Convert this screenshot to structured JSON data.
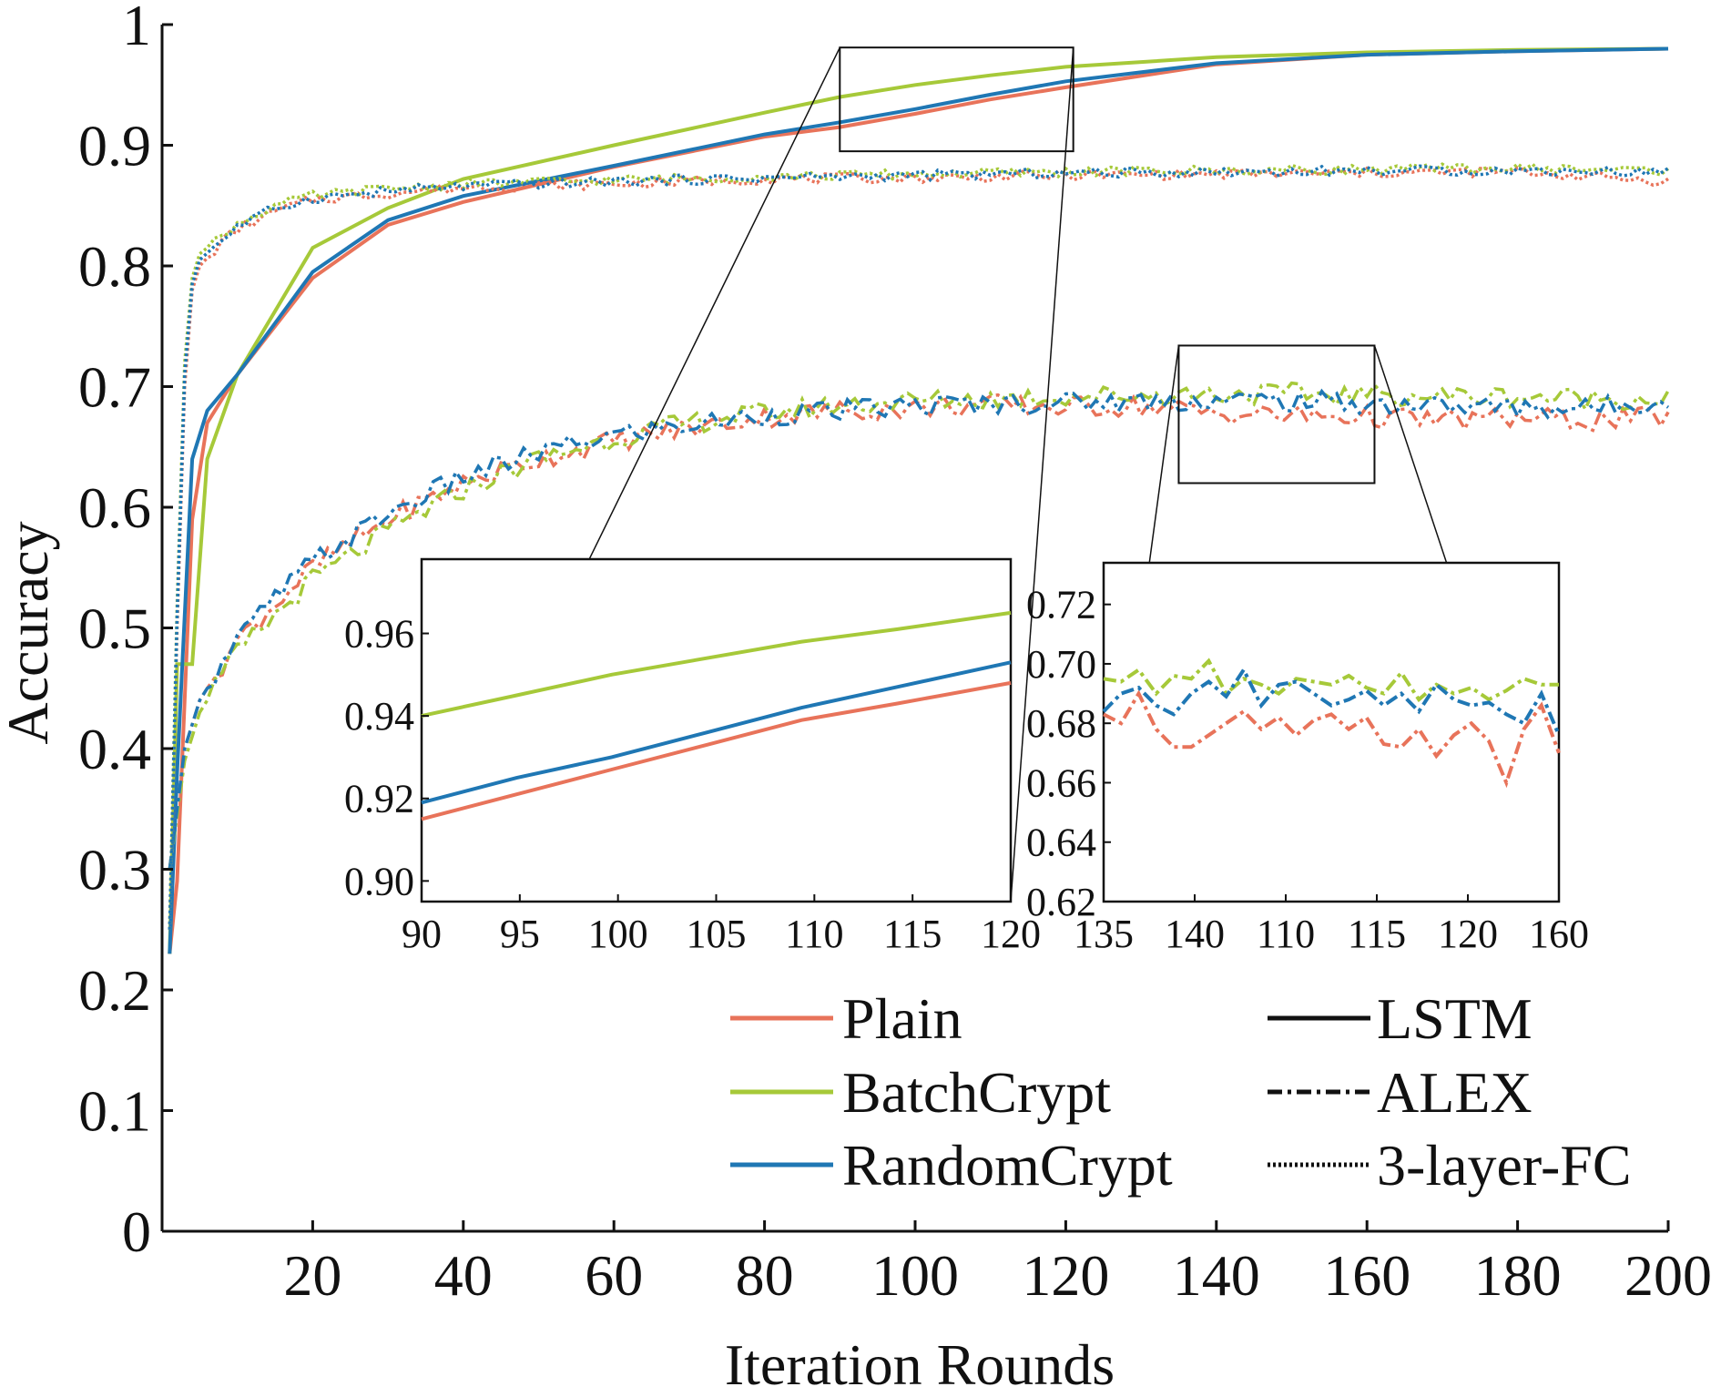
{
  "colors": {
    "Plain": "#e8735a",
    "BatchCrypt": "#a6c939",
    "RandomCrypt": "#1f77b4",
    "axis": "#111111"
  },
  "chart_data": [
    {
      "id": "main",
      "type": "line",
      "xlabel": "Iteration Rounds",
      "ylabel": "Accuracy",
      "xlim": [
        0,
        200
      ],
      "ylim": [
        0,
        1
      ],
      "xticks": [
        "20",
        "40",
        "60",
        "80",
        "100",
        "120",
        "140",
        "160",
        "180",
        "200"
      ],
      "yticks": [
        "0",
        "0.1",
        "0.2",
        "0.3",
        "0.4",
        "0.5",
        "0.6",
        "0.7",
        "0.8",
        "0.9",
        "1"
      ],
      "grid": false,
      "legend": {
        "placement": "bottom-right",
        "methods": [
          "Plain",
          "BatchCrypt",
          "RandomCrypt"
        ],
        "models": [
          "LSTM",
          "ALEX",
          "3-layer-FC"
        ]
      },
      "series": [
        {
          "name": "Plain",
          "model": "LSTM",
          "style": "solid",
          "x": [
            1,
            2,
            4,
            6,
            10,
            20,
            30,
            40,
            60,
            80,
            90,
            100,
            110,
            120,
            140,
            160,
            180,
            200
          ],
          "y": [
            0.23,
            0.29,
            0.59,
            0.67,
            0.71,
            0.79,
            0.834,
            0.853,
            0.882,
            0.907,
            0.915,
            0.926,
            0.938,
            0.948,
            0.967,
            0.975,
            0.978,
            0.98
          ]
        },
        {
          "name": "BatchCrypt",
          "model": "LSTM",
          "style": "solid",
          "x": [
            1,
            2,
            4,
            6,
            10,
            20,
            30,
            40,
            60,
            80,
            90,
            100,
            110,
            120,
            140,
            160,
            180,
            200
          ],
          "y": [
            0.23,
            0.47,
            0.47,
            0.64,
            0.71,
            0.815,
            0.848,
            0.872,
            0.9,
            0.927,
            0.94,
            0.95,
            0.958,
            0.965,
            0.973,
            0.977,
            0.979,
            0.98
          ]
        },
        {
          "name": "RandomCrypt",
          "model": "LSTM",
          "style": "solid",
          "x": [
            1,
            2,
            4,
            6,
            10,
            20,
            30,
            40,
            60,
            80,
            90,
            100,
            110,
            120,
            140,
            160,
            180,
            200
          ],
          "y": [
            0.23,
            0.38,
            0.64,
            0.68,
            0.71,
            0.795,
            0.838,
            0.858,
            0.883,
            0.909,
            0.919,
            0.93,
            0.942,
            0.953,
            0.968,
            0.975,
            0.978,
            0.98
          ]
        },
        {
          "name": "Plain",
          "model": "ALEX",
          "style": "dashed",
          "x": [
            1,
            3,
            5,
            8,
            10,
            15,
            20,
            25,
            30,
            40,
            50,
            60,
            70,
            80,
            90,
            100,
            110,
            120,
            130,
            140,
            150,
            160,
            170,
            180,
            190,
            200
          ],
          "y": [
            0.3,
            0.4,
            0.44,
            0.47,
            0.49,
            0.52,
            0.55,
            0.57,
            0.59,
            0.62,
            0.64,
            0.655,
            0.665,
            0.675,
            0.68,
            0.682,
            0.685,
            0.683,
            0.684,
            0.678,
            0.676,
            0.675,
            0.672,
            0.674,
            0.672,
            0.675
          ]
        },
        {
          "name": "BatchCrypt",
          "model": "ALEX",
          "style": "dashed",
          "x": [
            1,
            3,
            5,
            8,
            10,
            15,
            20,
            25,
            30,
            40,
            50,
            60,
            70,
            80,
            90,
            100,
            110,
            120,
            130,
            140,
            150,
            160,
            170,
            180,
            190,
            200
          ],
          "y": [
            0.3,
            0.39,
            0.43,
            0.46,
            0.48,
            0.51,
            0.54,
            0.56,
            0.58,
            0.615,
            0.64,
            0.657,
            0.67,
            0.678,
            0.685,
            0.688,
            0.69,
            0.692,
            0.693,
            0.694,
            0.694,
            0.693,
            0.692,
            0.692,
            0.69,
            0.69
          ]
        },
        {
          "name": "RandomCrypt",
          "model": "ALEX",
          "style": "dashed",
          "x": [
            1,
            3,
            5,
            8,
            10,
            15,
            20,
            25,
            30,
            40,
            50,
            60,
            70,
            80,
            90,
            100,
            110,
            120,
            130,
            140,
            150,
            160,
            170,
            180,
            190,
            200
          ],
          "y": [
            0.3,
            0.4,
            0.44,
            0.47,
            0.49,
            0.525,
            0.555,
            0.575,
            0.595,
            0.625,
            0.645,
            0.66,
            0.668,
            0.676,
            0.68,
            0.684,
            0.686,
            0.687,
            0.688,
            0.689,
            0.688,
            0.686,
            0.684,
            0.683,
            0.682,
            0.69
          ]
        },
        {
          "name": "Plain",
          "model": "3-layer-FC",
          "style": "dotted",
          "x": [
            1,
            2,
            3,
            4,
            5,
            8,
            10,
            15,
            20,
            30,
            40,
            60,
            80,
            100,
            120,
            140,
            160,
            180,
            200
          ],
          "y": [
            0.25,
            0.5,
            0.7,
            0.78,
            0.8,
            0.82,
            0.83,
            0.845,
            0.855,
            0.86,
            0.865,
            0.868,
            0.872,
            0.873,
            0.875,
            0.876,
            0.877,
            0.878,
            0.87
          ]
        },
        {
          "name": "BatchCrypt",
          "model": "3-layer-FC",
          "style": "dotted",
          "x": [
            1,
            2,
            3,
            4,
            5,
            8,
            10,
            15,
            20,
            30,
            40,
            60,
            80,
            100,
            120,
            140,
            160,
            180,
            200
          ],
          "y": [
            0.25,
            0.52,
            0.72,
            0.79,
            0.81,
            0.825,
            0.835,
            0.85,
            0.858,
            0.864,
            0.868,
            0.871,
            0.874,
            0.876,
            0.878,
            0.879,
            0.88,
            0.881,
            0.879
          ]
        },
        {
          "name": "RandomCrypt",
          "model": "3-layer-FC",
          "style": "dotted",
          "x": [
            1,
            2,
            3,
            4,
            5,
            8,
            10,
            15,
            20,
            30,
            40,
            60,
            80,
            100,
            120,
            140,
            160,
            180,
            200
          ],
          "y": [
            0.25,
            0.51,
            0.71,
            0.785,
            0.805,
            0.822,
            0.832,
            0.848,
            0.856,
            0.862,
            0.866,
            0.87,
            0.873,
            0.875,
            0.877,
            0.878,
            0.879,
            0.879,
            0.878
          ]
        }
      ]
    },
    {
      "id": "inset-lstm",
      "type": "line",
      "xlim": [
        90,
        121
      ],
      "ylim": [
        0.895,
        0.978
      ],
      "xticks": [
        "90",
        "95",
        "100",
        "105",
        "110",
        "115",
        "120"
      ],
      "yticks": [
        "0.90",
        "0.92",
        "0.94",
        "0.96"
      ],
      "series": [
        {
          "name": "Plain",
          "model": "LSTM",
          "x": [
            90,
            95,
            100,
            105,
            110,
            115,
            121
          ],
          "y": [
            0.915,
            0.921,
            0.927,
            0.933,
            0.939,
            0.943,
            0.948
          ]
        },
        {
          "name": "BatchCrypt",
          "model": "LSTM",
          "x": [
            90,
            95,
            100,
            105,
            110,
            115,
            121
          ],
          "y": [
            0.94,
            0.945,
            0.95,
            0.954,
            0.958,
            0.961,
            0.965
          ]
        },
        {
          "name": "RandomCrypt",
          "model": "LSTM",
          "x": [
            90,
            95,
            100,
            105,
            110,
            115,
            121
          ],
          "y": [
            0.919,
            0.925,
            0.93,
            0.936,
            0.942,
            0.947,
            0.953
          ]
        }
      ]
    },
    {
      "id": "inset-alex",
      "type": "line",
      "xlim": [
        135,
        161
      ],
      "ylim": [
        0.62,
        0.734
      ],
      "xticks": [
        "135",
        "140",
        "110",
        "115",
        "120",
        "160"
      ],
      "yticks": [
        "0.62",
        "0.64",
        "0.66",
        "0.68",
        "0.70",
        "0.72"
      ],
      "series": [
        {
          "name": "Plain",
          "model": "ALEX",
          "x": [
            135,
            136,
            137,
            138,
            139,
            140,
            141,
            142,
            143,
            144,
            145,
            146,
            147,
            148,
            149,
            150,
            151,
            152,
            153,
            154,
            155,
            156,
            157,
            158,
            159,
            160,
            161
          ],
          "y": [
            0.683,
            0.68,
            0.69,
            0.678,
            0.672,
            0.672,
            0.676,
            0.68,
            0.684,
            0.678,
            0.682,
            0.676,
            0.681,
            0.683,
            0.678,
            0.682,
            0.673,
            0.672,
            0.678,
            0.669,
            0.676,
            0.68,
            0.674,
            0.66,
            0.678,
            0.686,
            0.67
          ]
        },
        {
          "name": "BatchCrypt",
          "model": "ALEX",
          "x": [
            135,
            136,
            137,
            138,
            139,
            140,
            141,
            142,
            143,
            144,
            145,
            146,
            147,
            148,
            149,
            150,
            151,
            152,
            153,
            154,
            155,
            156,
            157,
            158,
            159,
            160,
            161
          ],
          "y": [
            0.695,
            0.694,
            0.698,
            0.69,
            0.696,
            0.695,
            0.701,
            0.69,
            0.695,
            0.693,
            0.69,
            0.695,
            0.694,
            0.693,
            0.696,
            0.692,
            0.69,
            0.697,
            0.688,
            0.693,
            0.69,
            0.692,
            0.688,
            0.691,
            0.695,
            0.693,
            0.693
          ]
        },
        {
          "name": "RandomCrypt",
          "model": "ALEX",
          "x": [
            135,
            136,
            137,
            138,
            139,
            140,
            141,
            142,
            143,
            144,
            145,
            146,
            147,
            148,
            149,
            150,
            151,
            152,
            153,
            154,
            155,
            156,
            157,
            158,
            159,
            160,
            161
          ],
          "y": [
            0.684,
            0.69,
            0.692,
            0.686,
            0.683,
            0.69,
            0.694,
            0.689,
            0.698,
            0.686,
            0.693,
            0.694,
            0.69,
            0.686,
            0.688,
            0.691,
            0.686,
            0.69,
            0.684,
            0.693,
            0.688,
            0.686,
            0.687,
            0.683,
            0.68,
            0.69,
            0.676
          ]
        }
      ]
    }
  ]
}
